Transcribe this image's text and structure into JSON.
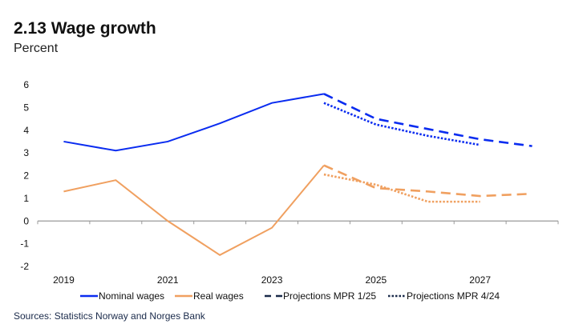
{
  "chart_data": {
    "type": "line",
    "title": "2.13 Wage growth",
    "subtitle": "Percent",
    "source": "Sources: Statistics Norway and Norges Bank",
    "x": [
      2019,
      2020,
      2021,
      2022,
      2023,
      2024,
      2025,
      2026,
      2027,
      2028
    ],
    "x_tick_labels": [
      "2019",
      "2021",
      "2023",
      "2025",
      "2027"
    ],
    "ylim": [
      -2,
      6
    ],
    "y_ticks": [
      -2,
      -1,
      0,
      1,
      2,
      3,
      4,
      5,
      6
    ],
    "grid": false,
    "legend_placement": "bottom",
    "series": [
      {
        "name": "Nominal wages",
        "color": "#0a2cf0",
        "style": "solid",
        "x": [
          2019,
          2020,
          2021,
          2022,
          2023,
          2024
        ],
        "values": [
          3.5,
          3.1,
          3.5,
          4.3,
          5.2,
          5.6
        ]
      },
      {
        "name": "Real wages",
        "color": "#f0a060",
        "style": "solid",
        "x": [
          2019,
          2020,
          2021,
          2022,
          2023,
          2024
        ],
        "values": [
          1.3,
          1.8,
          0.0,
          -1.5,
          -0.3,
          2.45
        ]
      },
      {
        "name": "Projections MPR 1/25",
        "color": "#0a2cf0",
        "style": "dashed",
        "x": [
          2024,
          2025,
          2026,
          2027,
          2028
        ],
        "values": [
          5.6,
          4.5,
          4.05,
          3.6,
          3.3
        ]
      },
      {
        "name": "Projections MPR 1/25",
        "color": "#f0a060",
        "style": "dashed",
        "x": [
          2024,
          2025,
          2026,
          2027,
          2028
        ],
        "values": [
          2.45,
          1.45,
          1.3,
          1.1,
          1.2
        ]
      },
      {
        "name": "Projections MPR 4/24",
        "color": "#0a2cf0",
        "style": "dotted",
        "x": [
          2024,
          2025,
          2026,
          2027
        ],
        "values": [
          5.2,
          4.25,
          3.75,
          3.35
        ]
      },
      {
        "name": "Projections MPR 4/24",
        "color": "#f0a060",
        "style": "dotted",
        "x": [
          2024,
          2025,
          2026,
          2027
        ],
        "values": [
          2.05,
          1.6,
          0.85,
          0.85
        ]
      }
    ],
    "legend": [
      {
        "label": "Nominal wages",
        "color": "#0a2cf0",
        "style": "solid"
      },
      {
        "label": "Real wages",
        "color": "#f0a060",
        "style": "solid"
      },
      {
        "label": "Projections MPR 1/25",
        "color": "#1a2a4a",
        "style": "dashed"
      },
      {
        "label": "Projections MPR 4/24",
        "color": "#1a2a4a",
        "style": "dotted"
      }
    ]
  }
}
